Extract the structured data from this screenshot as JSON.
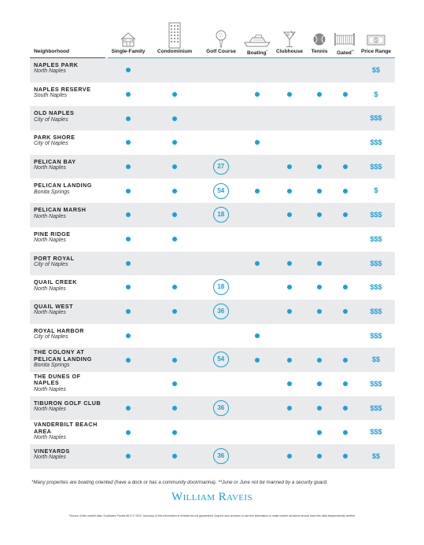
{
  "icons": [
    "house-icon",
    "building-icon",
    "golf-ball-icon",
    "boat-icon",
    "cocktail-icon",
    "tennis-ball-icon",
    "gate-icon",
    "dollar-bill-icon"
  ],
  "columns": {
    "neighborhood": "Neighborhood",
    "single_family": "Single-Family",
    "condominium": "Condominium",
    "golf_course": "Golf Course",
    "boating": "Boating",
    "boating_mark": "*",
    "clubhouse": "Clubhouse",
    "tennis": "Tennis",
    "gated": "Gated",
    "gated_mark": "**",
    "price_range": "Price Range"
  },
  "accent": "#1aa0d8",
  "rows": [
    {
      "name": [
        "NAPLES PARK"
      ],
      "location": "North Naples",
      "single_family": true,
      "condominium": false,
      "golf": "",
      "boating": false,
      "clubhouse": false,
      "tennis": false,
      "gated": false,
      "price": "$$"
    },
    {
      "name": [
        "NAPLES RESERVE"
      ],
      "location": "South Naples",
      "single_family": true,
      "condominium": true,
      "golf": "",
      "boating": true,
      "clubhouse": true,
      "tennis": true,
      "gated": true,
      "price": "$"
    },
    {
      "name": [
        "OLD NAPLES"
      ],
      "location": "City of Naples",
      "single_family": true,
      "condominium": true,
      "golf": "",
      "boating": false,
      "clubhouse": false,
      "tennis": false,
      "gated": false,
      "price": "$$$"
    },
    {
      "name": [
        "PARK SHORE"
      ],
      "location": "City of Naples",
      "single_family": true,
      "condominium": true,
      "golf": "",
      "boating": true,
      "clubhouse": false,
      "tennis": false,
      "gated": false,
      "price": "$$$"
    },
    {
      "name": [
        "PELICAN BAY"
      ],
      "location": "North Naples",
      "single_family": true,
      "condominium": true,
      "golf": "27",
      "boating": false,
      "clubhouse": true,
      "tennis": true,
      "gated": true,
      "price": "$$$"
    },
    {
      "name": [
        "PELICAN LANDING"
      ],
      "location": "Bonita Springs",
      "single_family": true,
      "condominium": true,
      "golf": "54",
      "boating": true,
      "clubhouse": true,
      "tennis": true,
      "gated": true,
      "price": "$"
    },
    {
      "name": [
        "PELICAN MARSH"
      ],
      "location": "North Naples",
      "single_family": true,
      "condominium": true,
      "golf": "18",
      "boating": false,
      "clubhouse": true,
      "tennis": true,
      "gated": true,
      "price": "$$$"
    },
    {
      "name": [
        "PINE RIDGE"
      ],
      "location": "North Naples",
      "single_family": true,
      "condominium": true,
      "golf": "",
      "boating": false,
      "clubhouse": false,
      "tennis": false,
      "gated": false,
      "price": "$$$"
    },
    {
      "name": [
        "PORT ROYAL"
      ],
      "location": "City of Naples",
      "single_family": true,
      "condominium": false,
      "golf": "",
      "boating": true,
      "clubhouse": true,
      "tennis": true,
      "gated": false,
      "price": "$$$"
    },
    {
      "name": [
        "QUAIL CREEK"
      ],
      "location": "North Naples",
      "single_family": true,
      "condominium": true,
      "golf": "18",
      "boating": false,
      "clubhouse": true,
      "tennis": true,
      "gated": true,
      "price": "$$$"
    },
    {
      "name": [
        "QUAIL WEST"
      ],
      "location": "North Naples",
      "single_family": true,
      "condominium": true,
      "golf": "36",
      "boating": false,
      "clubhouse": true,
      "tennis": true,
      "gated": true,
      "price": "$$$"
    },
    {
      "name": [
        "ROYAL HARBOR"
      ],
      "location": "City of Naples",
      "single_family": true,
      "condominium": false,
      "golf": "",
      "boating": true,
      "clubhouse": false,
      "tennis": false,
      "gated": false,
      "price": "$$$"
    },
    {
      "name": [
        "THE COLONY AT",
        "PELICAN LANDING"
      ],
      "location": "Bonita Springs",
      "single_family": true,
      "condominium": true,
      "golf": "54",
      "boating": true,
      "clubhouse": true,
      "tennis": true,
      "gated": true,
      "price": "$$"
    },
    {
      "name": [
        "THE DUNES OF",
        "NAPLES"
      ],
      "location": "North Naples",
      "single_family": false,
      "condominium": true,
      "golf": "",
      "boating": false,
      "clubhouse": true,
      "tennis": true,
      "gated": true,
      "price": "$$$"
    },
    {
      "name": [
        "TIBURON GOLF CLUB"
      ],
      "location": "North Naples",
      "single_family": true,
      "condominium": true,
      "golf": "36",
      "boating": false,
      "clubhouse": true,
      "tennis": true,
      "gated": true,
      "price": "$$$"
    },
    {
      "name": [
        "VANDERBILT BEACH",
        "AREA"
      ],
      "location": "North Naples",
      "single_family": true,
      "condominium": true,
      "golf": "",
      "boating": false,
      "clubhouse": false,
      "tennis": true,
      "gated": true,
      "price": "$$$"
    },
    {
      "name": [
        "VINEYARDS"
      ],
      "location": "North Naples",
      "single_family": true,
      "condominium": true,
      "golf": "36",
      "boating": false,
      "clubhouse": true,
      "tennis": true,
      "gated": true,
      "price": "$$"
    }
  ],
  "footnote": "*Many properties are boating oriented (have a dock or has a community dock/marina). **June or June not be manned by a security guard.",
  "logo": {
    "first": "W",
    "first_rest": "ILLIAM",
    "second": "R",
    "second_rest": "AVEIS"
  },
  "disclaimer": "*Source of this market data: Southwest Florida MLS © 2022. Accuracy of this information is reliable but not guaranteed. Anyone who chooses to use this information to make market decisions should have this data independently verified."
}
